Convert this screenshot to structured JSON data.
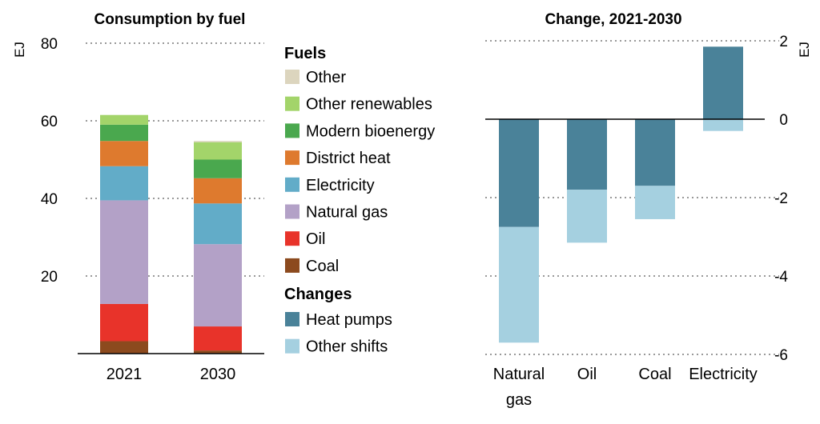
{
  "chart_data": [
    {
      "type": "bar",
      "stacked": true,
      "title": "Consumption by fuel",
      "ylabel": "EJ",
      "ylim": [
        0,
        80
      ],
      "yticks": [
        20,
        40,
        60,
        80
      ],
      "categories": [
        "2021",
        "2030"
      ],
      "series": [
        {
          "name": "Coal",
          "color": "#8c4a1e",
          "values": [
            3.2,
            0.8
          ]
        },
        {
          "name": "Oil",
          "color": "#e8332a",
          "values": [
            9.6,
            6.2
          ]
        },
        {
          "name": "Natural gas",
          "color": "#b3a1c7",
          "values": [
            26.7,
            21.2
          ]
        },
        {
          "name": "Electricity",
          "color": "#62acc8",
          "values": [
            8.8,
            10.5
          ]
        },
        {
          "name": "District heat",
          "color": "#de7a2e",
          "values": [
            6.5,
            6.5
          ]
        },
        {
          "name": "Modern bioenergy",
          "color": "#4aa84e",
          "values": [
            4.2,
            4.8
          ]
        },
        {
          "name": "Other renewables",
          "color": "#a3d46a",
          "values": [
            2.5,
            4.5
          ]
        },
        {
          "name": "Other",
          "color": "#dcd5be",
          "values": [
            0,
            0.3
          ]
        }
      ]
    },
    {
      "type": "bar",
      "stacked": true,
      "title": "Change, 2021-2030",
      "ylabel": "EJ",
      "ylim": [
        -6,
        2
      ],
      "yticks": [
        2,
        0,
        -2,
        -4,
        -6
      ],
      "categories": [
        "Natural gas",
        "Oil",
        "Coal",
        "Electricity"
      ],
      "category_lines": [
        [
          "Natural",
          "gas"
        ],
        [
          "Oil"
        ],
        [
          "Coal"
        ],
        [
          "Electricity"
        ]
      ],
      "series": [
        {
          "name": "Heat pumps",
          "color": "#4a8299",
          "values": [
            -2.75,
            -1.8,
            -1.7,
            1.85
          ]
        },
        {
          "name": "Other shifts",
          "color": "#a5d0e0",
          "values": [
            -2.95,
            -1.35,
            -0.85,
            -0.3
          ]
        }
      ]
    }
  ],
  "legend": {
    "fuels_heading": "Fuels",
    "fuels": [
      {
        "label": "Other",
        "color": "#dcd5be"
      },
      {
        "label": "Other renewables",
        "color": "#a3d46a"
      },
      {
        "label": "Modern bioenergy",
        "color": "#4aa84e"
      },
      {
        "label": "District heat",
        "color": "#de7a2e"
      },
      {
        "label": "Electricity",
        "color": "#62acc8"
      },
      {
        "label": "Natural gas",
        "color": "#b3a1c7"
      },
      {
        "label": "Oil",
        "color": "#e8332a"
      },
      {
        "label": "Coal",
        "color": "#8c4a1e"
      }
    ],
    "changes_heading": "Changes",
    "changes": [
      {
        "label": "Heat pumps",
        "color": "#4a8299"
      },
      {
        "label": "Other shifts",
        "color": "#a5d0e0"
      }
    ]
  }
}
